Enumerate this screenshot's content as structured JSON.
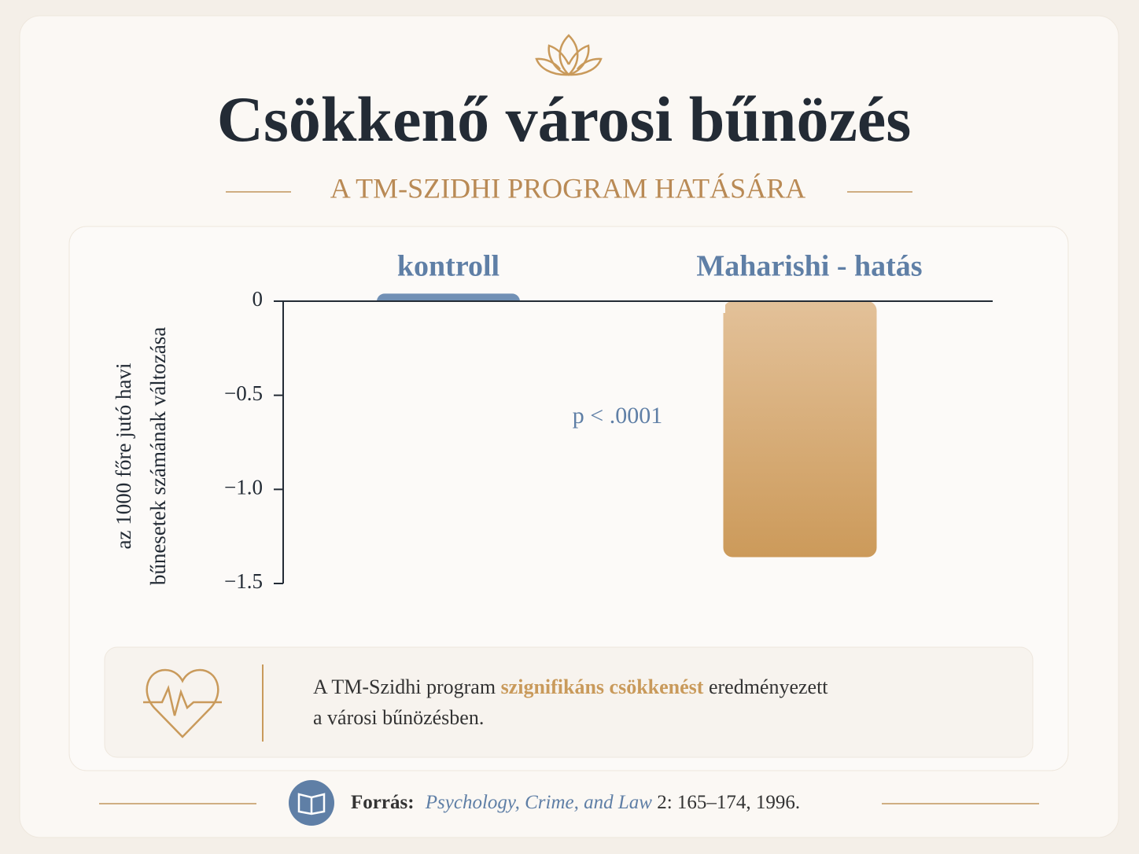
{
  "chart_data": {
    "type": "bar",
    "title": "Csökkenő városi bűnözés",
    "subtitle": "A TM-SZIDHI PROGRAM HATÁSÁRA",
    "y_label": [
      "az 1000 főre jutó havi",
      "bűnesetek számának változása"
    ],
    "categories": [
      "kontroll",
      "Maharishi - hatás"
    ],
    "values": [
      0.04,
      -1.36
    ],
    "colors": [
      "#7190b5",
      "#d4a368"
    ],
    "ylim": [
      -1.5,
      0
    ],
    "yticks": [
      0,
      {
        "value": -0.5,
        "label": "−0.5"
      },
      {
        "value": -1.0,
        "label": "−1.0"
      },
      {
        "value": -1.5,
        "label": "−1.5"
      }
    ],
    "annotation": "p < .0001",
    "note": [
      "A TM-Szidhi program",
      "szignifikáns csökkenést",
      "eredményezett",
      "a városi bűnözésben."
    ],
    "source": {
      "label": "Forrás:",
      "journal": "Psychology, Crime, and Law",
      "details": "2: 165–174, 1996."
    }
  }
}
